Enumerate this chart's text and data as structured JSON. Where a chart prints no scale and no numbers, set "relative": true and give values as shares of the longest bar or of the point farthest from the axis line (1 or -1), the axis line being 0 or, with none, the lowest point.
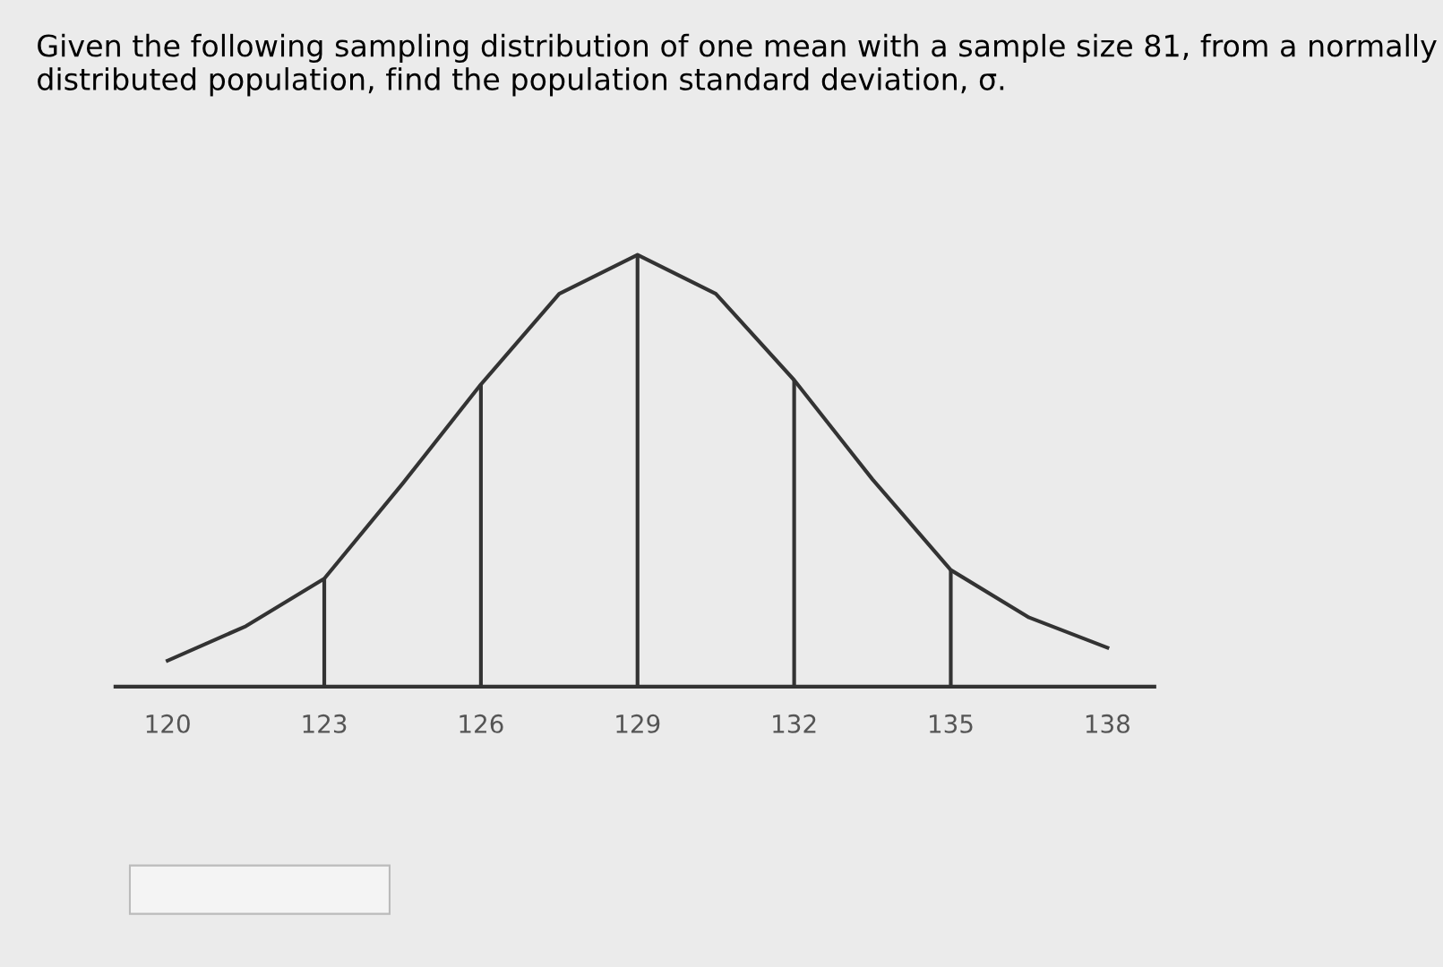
{
  "chart_data": {
    "type": "line",
    "title": "Given the following sampling distribution of one mean with a sample size 81, from a normally distributed population, find the population standard deviation, σ.",
    "relative": true,
    "x": [
      120,
      121.5,
      123,
      124.5,
      126,
      127.5,
      129,
      130.5,
      132,
      133.5,
      135,
      136.5,
      138
    ],
    "series": [
      {
        "color": "#333333",
        "values": [
          0.06,
          0.14,
          0.25,
          0.47,
          0.7,
          0.91,
          1,
          0.91,
          0.71,
          0.48,
          0.27,
          0.16,
          0.09
        ]
      }
    ],
    "xlim": [
      119,
      138.9
    ],
    "xticks": [
      120,
      123,
      126,
      129,
      132,
      135,
      138
    ],
    "ref_lines": [
      {
        "axis": "x",
        "value": 123,
        "color": "#333333"
      },
      {
        "axis": "x",
        "value": 126,
        "color": "#333333"
      },
      {
        "axis": "x",
        "value": 129,
        "color": "#333333"
      },
      {
        "axis": "x",
        "value": 132,
        "color": "#333333"
      },
      {
        "axis": "x",
        "value": 135,
        "color": "#333333"
      }
    ],
    "grid": false,
    "legend": false,
    "marker": "none",
    "line_style": "solid"
  }
}
